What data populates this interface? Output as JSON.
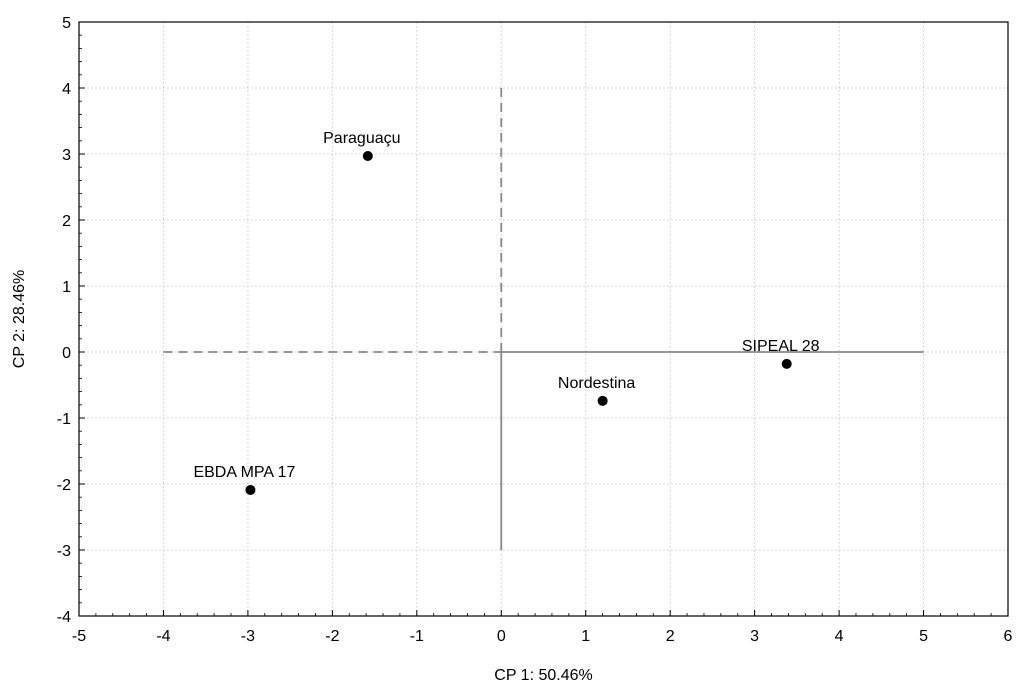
{
  "chart_data": {
    "type": "scatter",
    "title": "",
    "xlabel": "CP 1: 50.46%",
    "ylabel": "CP 2: 28.46%",
    "xlim": [
      -5,
      6
    ],
    "ylim": [
      -4,
      5
    ],
    "xticks": [
      -5,
      -4,
      -3,
      -2,
      -1,
      0,
      1,
      2,
      3,
      4,
      5,
      6
    ],
    "yticks": [
      -4,
      -3,
      -2,
      -1,
      0,
      1,
      2,
      3,
      4,
      5
    ],
    "grid": true,
    "points": [
      {
        "label": "Paraguaçu",
        "x": -1.58,
        "y": 2.97
      },
      {
        "label": "EBDA MPA 17",
        "x": -2.97,
        "y": -2.09
      },
      {
        "label": "Nordestina",
        "x": 1.2,
        "y": -0.74
      },
      {
        "label": "SIPEAL 28",
        "x": 3.38,
        "y": -0.18
      }
    ],
    "reference_lines": [
      {
        "axis": "x",
        "value": 0,
        "from": 0,
        "to": 4,
        "style": "dashed"
      },
      {
        "axis": "x",
        "value": 0,
        "from": -3,
        "to": 0,
        "style": "solid"
      },
      {
        "axis": "y",
        "value": 0,
        "from": -4,
        "to": 0,
        "style": "dashed"
      },
      {
        "axis": "y",
        "value": 0,
        "from": 0,
        "to": 5,
        "style": "solid"
      }
    ],
    "colors": {
      "points": "#000000",
      "reference": "#888888",
      "grid": "#c8c8c8"
    }
  }
}
